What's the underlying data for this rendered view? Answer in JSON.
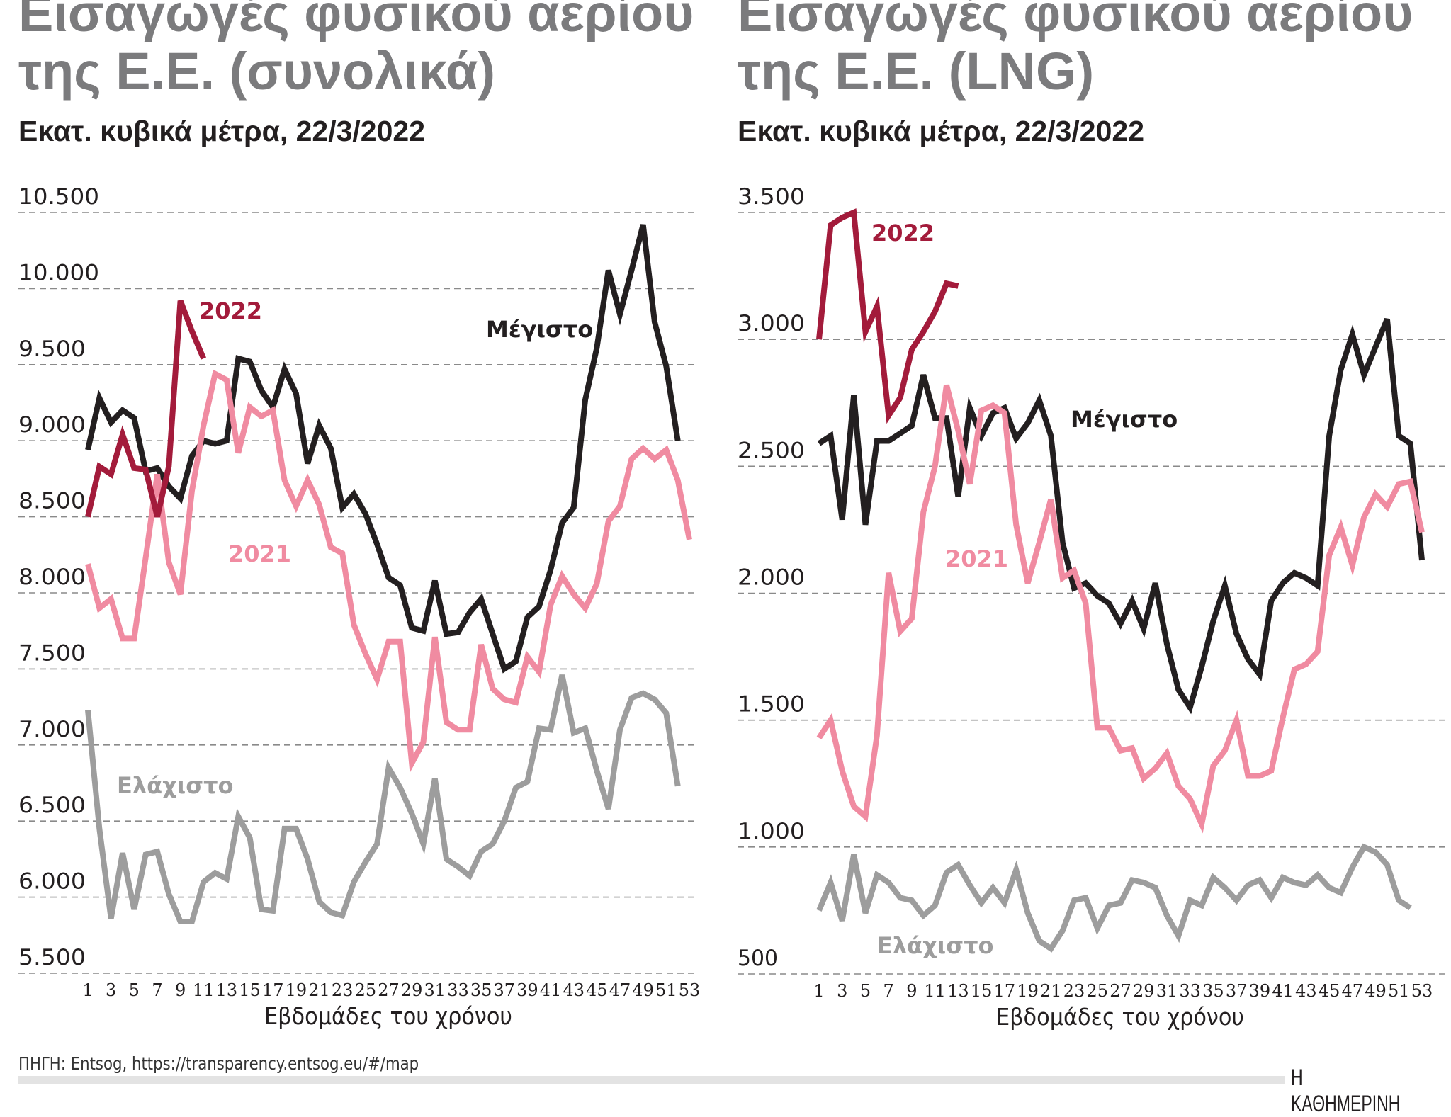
{
  "colors": {
    "max": "#231f20",
    "y2021": "#f08ba1",
    "y2022": "#a31b3b",
    "min": "#9d9d9d",
    "title": "#7b7b7d",
    "grid": "#8a8a8a"
  },
  "source": "ΠΗΓΗ: Entsog, https://transparency.entsog.eu/#/map",
  "logo": "Η ΚΑΘΗΜΕΡΙΝΗ",
  "chart_data": [
    {
      "type": "line",
      "title_line1": "Εισαγωγές φυσικού αερίου",
      "title_line2": "της Ε.Ε. (συνολικά)",
      "subtitle": "Εκατ. κυβικά μέτρα, 22/3/2022",
      "xlabel": "Εβδομάδες του χρόνου",
      "ylim": [
        5500,
        10500
      ],
      "grid": true,
      "yticks": [
        "10.500",
        "10.000",
        "9.500",
        "9.000",
        "8.500",
        "8.000",
        "7.500",
        "7.000",
        "6.500",
        "6.000",
        "5.500"
      ],
      "ytick_values": [
        10500,
        10000,
        9500,
        9000,
        8500,
        8000,
        7500,
        7000,
        6500,
        6000,
        5500
      ],
      "xticks": [
        "1",
        "3",
        "5",
        "7",
        "9",
        "11",
        "13",
        "15",
        "17",
        "19",
        "21",
        "23",
        "25",
        "27",
        "29",
        "31",
        "33",
        "35",
        "37",
        "39",
        "41",
        "43",
        "45",
        "47",
        "49",
        "51",
        "53"
      ],
      "series": [
        {
          "name": "Μέγιστο",
          "key": "max",
          "values": [
            8940,
            9280,
            9120,
            9200,
            9150,
            8800,
            8820,
            8700,
            8620,
            8900,
            9000,
            8980,
            9000,
            9540,
            9520,
            9330,
            9220,
            9470,
            9310,
            8850,
            9100,
            8950,
            8560,
            8650,
            8520,
            8320,
            8100,
            8050,
            7770,
            7750,
            8080,
            7730,
            7740,
            7870,
            7960,
            7730,
            7500,
            7550,
            7840,
            7910,
            8150,
            8460,
            8560,
            9270,
            9610,
            10120,
            9830,
            10120,
            10420,
            9780,
            9490,
            9000
          ]
        },
        {
          "name": "2021",
          "key": "y2021",
          "values": [
            8190,
            7900,
            7960,
            7700,
            7700,
            8230,
            8780,
            8200,
            7990,
            8670,
            9100,
            9440,
            9400,
            8920,
            9220,
            9160,
            9200,
            8740,
            8570,
            8740,
            8580,
            8300,
            8260,
            7790,
            7600,
            7430,
            7680,
            7680,
            6880,
            7020,
            7710,
            7150,
            7100,
            7100,
            7660,
            7370,
            7300,
            7280,
            7580,
            7480,
            7920,
            8110,
            7990,
            7900,
            8060,
            8470,
            8570,
            8880,
            8950,
            8880,
            8940,
            8740,
            8350
          ]
        },
        {
          "name": "2022",
          "key": "y2022",
          "values": [
            8500,
            8830,
            8780,
            9040,
            8820,
            8810,
            8500,
            8830,
            9920,
            9720,
            9540
          ]
        },
        {
          "name": "Ελάχιστο",
          "key": "min",
          "values": [
            7230,
            6450,
            5860,
            6290,
            5920,
            6280,
            6300,
            6020,
            5840,
            5840,
            6100,
            6160,
            6120,
            6530,
            6390,
            5920,
            5910,
            6450,
            6450,
            6250,
            5970,
            5900,
            5880,
            6100,
            6230,
            6350,
            6850,
            6720,
            6550,
            6350,
            6780,
            6250,
            6200,
            6140,
            6300,
            6350,
            6500,
            6720,
            6760,
            7110,
            7100,
            7460,
            7080,
            7110,
            6830,
            6580,
            7100,
            7310,
            7340,
            7300,
            7210,
            6730
          ]
        }
      ]
    },
    {
      "type": "line",
      "title_line1": "Εισαγωγές φυσικού αερίου",
      "title_line2": "της Ε.Ε. (LNG)",
      "subtitle": "Εκατ. κυβικά μέτρα, 22/3/2022",
      "xlabel": "Εβδομάδες του χρόνου",
      "ylim": [
        500,
        3500
      ],
      "grid": true,
      "yticks": [
        "3.500",
        "3.000",
        "2.500",
        "2.000",
        "1.500",
        "1.000",
        "500"
      ],
      "ytick_values": [
        3500,
        3000,
        2500,
        2000,
        1500,
        1000,
        500
      ],
      "xticks": [
        "1",
        "3",
        "5",
        "7",
        "9",
        "11",
        "13",
        "15",
        "17",
        "19",
        "21",
        "23",
        "25",
        "27",
        "29",
        "31",
        "33",
        "35",
        "37",
        "39",
        "41",
        "43",
        "45",
        "47",
        "49",
        "51",
        "53"
      ],
      "series": [
        {
          "name": "Μέγιστο",
          "key": "max",
          "values": [
            2590,
            2620,
            2290,
            2780,
            2270,
            2600,
            2600,
            2630,
            2660,
            2860,
            2690,
            2690,
            2380,
            2730,
            2620,
            2710,
            2730,
            2610,
            2670,
            2760,
            2620,
            2200,
            2020,
            2040,
            1990,
            1960,
            1880,
            1970,
            1860,
            2040,
            1800,
            1620,
            1550,
            1710,
            1890,
            2030,
            1840,
            1740,
            1680,
            1970,
            2040,
            2080,
            2060,
            2030,
            2620,
            2880,
            3020,
            2860,
            2970,
            3080,
            2620,
            2590,
            2130
          ]
        },
        {
          "name": "2021",
          "key": "y2021",
          "values": [
            1430,
            1500,
            1300,
            1160,
            1120,
            1440,
            2080,
            1850,
            1900,
            2320,
            2500,
            2820,
            2640,
            2430,
            2720,
            2740,
            2710,
            2270,
            2040,
            2200,
            2370,
            2060,
            2090,
            1960,
            1470,
            1470,
            1380,
            1390,
            1270,
            1310,
            1370,
            1240,
            1190,
            1090,
            1320,
            1380,
            1500,
            1280,
            1280,
            1300,
            1510,
            1700,
            1720,
            1770,
            2150,
            2260,
            2110,
            2300,
            2390,
            2340,
            2430,
            2440,
            2240
          ]
        },
        {
          "name": "2022",
          "key": "y2022",
          "values": [
            3000,
            3450,
            3480,
            3500,
            3030,
            3130,
            2700,
            2770,
            2960,
            3030,
            3110,
            3220,
            3210
          ]
        },
        {
          "name": "Ελάχιστο",
          "key": "min",
          "values": [
            750,
            860,
            710,
            970,
            740,
            890,
            860,
            800,
            790,
            730,
            770,
            900,
            930,
            850,
            780,
            840,
            780,
            910,
            740,
            630,
            600,
            670,
            790,
            800,
            680,
            770,
            780,
            870,
            860,
            840,
            730,
            650,
            790,
            770,
            880,
            840,
            790,
            850,
            870,
            800,
            880,
            860,
            850,
            890,
            840,
            820,
            920,
            1000,
            980,
            930,
            790,
            760
          ]
        }
      ]
    }
  ]
}
